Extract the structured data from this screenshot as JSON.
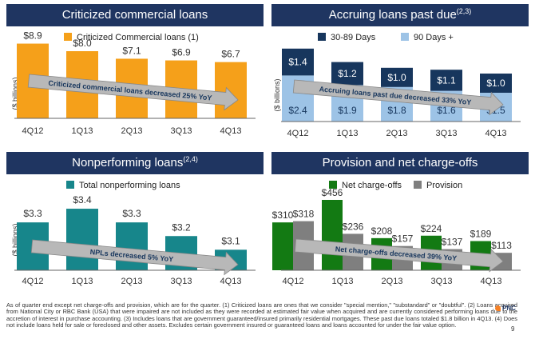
{
  "colors": {
    "header_bg": "#1f3561",
    "orange": "#f5a01a",
    "navy": "#17365d",
    "light_blue": "#9dc3e6",
    "teal": "#17868b",
    "green": "#137a13",
    "gray": "#7f7f7f",
    "arrow_fill": "#b8b8b8"
  },
  "panels": {
    "p1": {
      "title": "Criticized commercial loans",
      "title_sup": "",
      "ylabel": "($ billions)",
      "arrow_text": "Criticized commercial loans decreased 25% YoY"
    },
    "p2": {
      "title": "Accruing loans past due",
      "title_sup": "(2,3)",
      "ylabel": "($ billions)",
      "arrow_text": "Accruing loans past due decreased 33% YoY"
    },
    "p3": {
      "title": "Nonperforming loans",
      "title_sup": "(2,4)",
      "ylabel": "($ billions)",
      "arrow_text": "NPLs decreased 5% YoY"
    },
    "p4": {
      "title": "Provision and net charge-offs",
      "title_sup": "",
      "ylabel": "($ millions)",
      "arrow_text": "Net charge-offs decreased 39% YoY"
    }
  },
  "chart_data": [
    {
      "type": "bar",
      "title": "Criticized commercial loans",
      "ylabel": "($ billions)",
      "categories": [
        "4Q12",
        "1Q13",
        "2Q13",
        "3Q13",
        "4Q13"
      ],
      "series": [
        {
          "name": "Criticized Commercial loans (1)",
          "values": [
            8.9,
            8.0,
            7.1,
            6.9,
            6.7
          ],
          "labels": [
            "$8.9",
            "$8.0",
            "$7.1",
            "$6.9",
            "$6.7"
          ]
        }
      ],
      "legend": "top"
    },
    {
      "type": "bar",
      "stacked": true,
      "title": "Accruing loans past due (2,3)",
      "ylabel": "($ billions)",
      "categories": [
        "4Q12",
        "1Q13",
        "2Q13",
        "3Q13",
        "4Q13"
      ],
      "series": [
        {
          "name": "90 Days +",
          "values": [
            2.4,
            1.9,
            1.8,
            1.6,
            1.5
          ],
          "labels": [
            "$2.4",
            "$1.9",
            "$1.8",
            "$1.6",
            "$1.5"
          ]
        },
        {
          "name": "30-89 Days",
          "values": [
            1.4,
            1.2,
            1.0,
            1.1,
            1.0
          ],
          "labels": [
            "$1.4",
            "$1.2",
            "$1.0",
            "$1.1",
            "$1.0"
          ]
        }
      ],
      "legend": "top"
    },
    {
      "type": "bar",
      "title": "Nonperforming loans (2,4)",
      "ylabel": "($ billions)",
      "categories": [
        "4Q12",
        "1Q13",
        "2Q13",
        "3Q13",
        "4Q13"
      ],
      "series": [
        {
          "name": "Total nonperforming loans",
          "values": [
            3.3,
            3.4,
            3.3,
            3.2,
            3.1
          ],
          "labels": [
            "$3.3",
            "$3.4",
            "$3.3",
            "$3.2",
            "$3.1"
          ]
        }
      ],
      "legend": "top"
    },
    {
      "type": "bar",
      "title": "Provision and net charge-offs",
      "ylabel": "($ millions)",
      "categories": [
        "4Q12",
        "1Q13",
        "2Q13",
        "3Q13",
        "4Q13"
      ],
      "series": [
        {
          "name": "Net charge-offs",
          "values": [
            310,
            456,
            208,
            224,
            189
          ],
          "labels": [
            "$310",
            "$456",
            "$208",
            "$224",
            "$189"
          ]
        },
        {
          "name": "Provision",
          "values": [
            318,
            236,
            157,
            137,
            113
          ],
          "labels": [
            "$318",
            "$236",
            "$157",
            "$137",
            "$113"
          ]
        }
      ],
      "legend": "top"
    }
  ],
  "footnote": {
    "text": "As of quarter end except net charge-offs and provision, which are for the quarter. (1) Criticized loans are ones that we consider \"special mention,\" \"substandard\" or \"doubtful\". (2) Loans acquired from National City or RBC Bank (USA) that were impaired are not included as they were recorded at estimated fair value when acquired and are currently considered performing loans due to the accretion of interest in purchase accounting. (3) Includes loans that are government guaranteed/insured primarily residential mortgages. These past due loans totaled $1.8 billion in 4Q13. (4) Does not include loans held for sale or foreclosed and other assets. Excludes certain government insured or guaranteed loans and loans accounted for under the fair value option."
  },
  "logo": "PNC",
  "page_number": "9"
}
